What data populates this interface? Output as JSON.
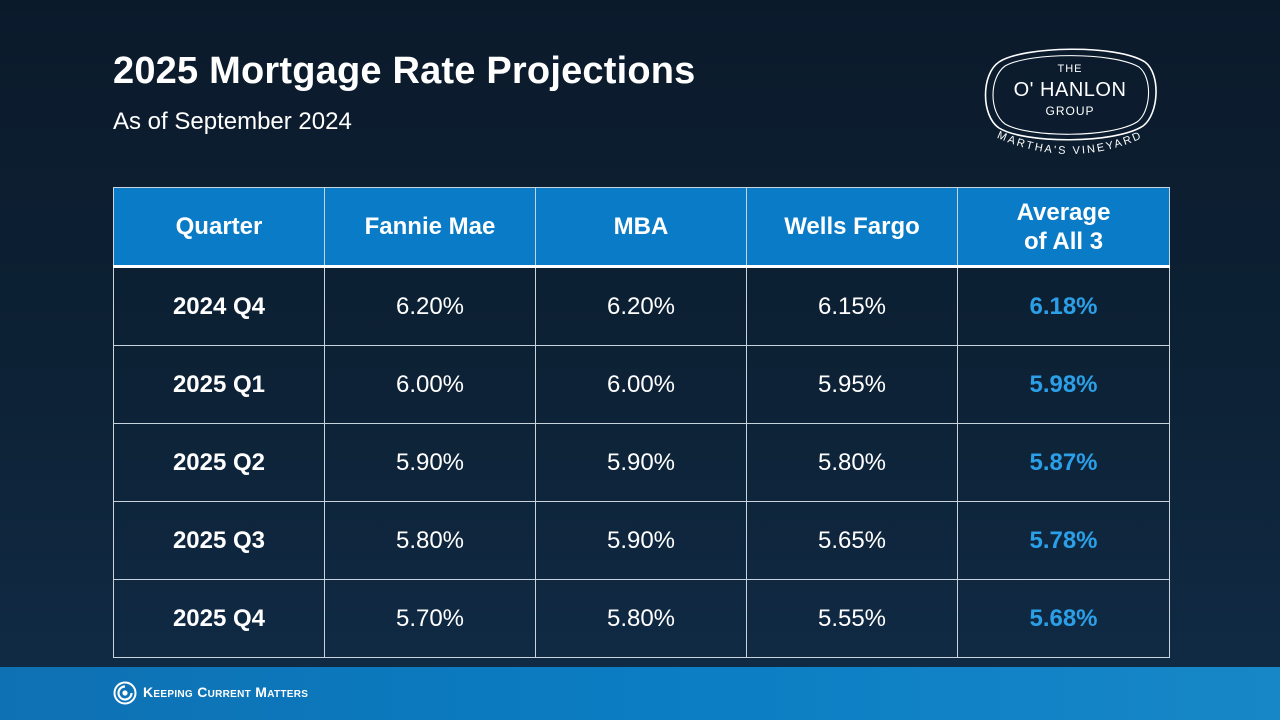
{
  "header": {
    "title": "2025 Mortgage Rate Projections",
    "subtitle": "As of September 2024"
  },
  "logo": {
    "line1": "THE",
    "line2": "O' HANLON",
    "line3": "GROUP",
    "tagline": "MARTHA'S VINEYARD"
  },
  "footer": {
    "brand": "Keeping Current Matters",
    "icon": "kcm-swirl-icon"
  },
  "colors": {
    "header_bg": "#0a7bc7",
    "average_text": "#2b9fe8",
    "footer_bg": "#0b7ec4"
  },
  "chart_data": {
    "type": "table",
    "title": "2025 Mortgage Rate Projections",
    "subtitle": "As of September 2024",
    "columns": [
      "Quarter",
      "Fannie Mae",
      "MBA",
      "Wells Fargo",
      "Average\nof All 3"
    ],
    "rows": [
      {
        "quarter": "2024 Q4",
        "fannie_mae": "6.20%",
        "mba": "6.20%",
        "wells_fargo": "6.15%",
        "average": "6.18%"
      },
      {
        "quarter": "2025 Q1",
        "fannie_mae": "6.00%",
        "mba": "6.00%",
        "wells_fargo": "5.95%",
        "average": "5.98%"
      },
      {
        "quarter": "2025 Q2",
        "fannie_mae": "5.90%",
        "mba": "5.90%",
        "wells_fargo": "5.80%",
        "average": "5.87%"
      },
      {
        "quarter": "2025 Q3",
        "fannie_mae": "5.80%",
        "mba": "5.90%",
        "wells_fargo": "5.65%",
        "average": "5.78%"
      },
      {
        "quarter": "2025 Q4",
        "fannie_mae": "5.70%",
        "mba": "5.80%",
        "wells_fargo": "5.55%",
        "average": "5.68%"
      }
    ]
  }
}
